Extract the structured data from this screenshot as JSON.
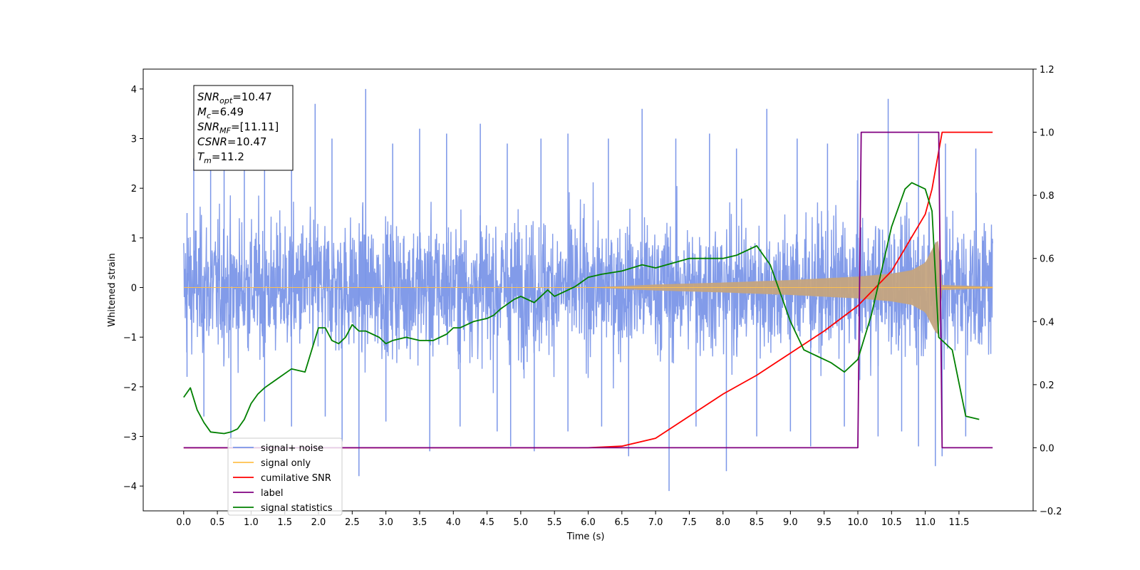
{
  "chart_data": {
    "type": "line",
    "xlabel": "Time (s)",
    "ylabel": "Whitened strain",
    "xlim": [
      -0.6,
      12.6
    ],
    "ylim": [
      -4.5,
      4.4
    ],
    "y2lim": [
      -0.2,
      1.2
    ],
    "xticks": [
      "0.0",
      "0.5",
      "1.0",
      "1.5",
      "2.0",
      "2.5",
      "3.0",
      "3.5",
      "4.0",
      "4.5",
      "5.0",
      "5.5",
      "6.0",
      "6.5",
      "7.0",
      "7.5",
      "8.0",
      "8.5",
      "9.0",
      "9.5",
      "10.0",
      "10.5",
      "11.0",
      "11.5"
    ],
    "yticks": [
      "4",
      "3",
      "2",
      "1",
      "0",
      "−1",
      "−2",
      "−3",
      "−4"
    ],
    "y2ticks": [
      "1.2",
      "1.0",
      "0.8",
      "0.6",
      "0.4",
      "0.2",
      "0.0",
      "−0.2"
    ],
    "grid": false,
    "legend_location": "lower-left",
    "annotation": {
      "lines": [
        {
          "var": "SNR",
          "sub": "opt",
          "value": "=10.47"
        },
        {
          "var": "M",
          "sub": "c",
          "value": "=6.49"
        },
        {
          "var": "SNR",
          "sub": "MF",
          "value": "=[11.11]"
        },
        {
          "var": "CSNR",
          "sub": "",
          "value": "=10.47"
        },
        {
          "var": "T",
          "sub": "m",
          "value": "=11.2"
        }
      ]
    },
    "series": [
      {
        "name": "signal+ noise",
        "color": "#7b96e8",
        "axis": "left",
        "style": "noise band ±1.5 typical, spikes to ±4",
        "spikes_high": [
          [
            0.05,
            1.5
          ],
          [
            0.15,
            2.6
          ],
          [
            0.4,
            2.9
          ],
          [
            0.6,
            3.1
          ],
          [
            0.9,
            3.0
          ],
          [
            1.2,
            2.7
          ],
          [
            1.6,
            3.2
          ],
          [
            1.95,
            3.7
          ],
          [
            2.2,
            3.0
          ],
          [
            2.7,
            4.0
          ],
          [
            3.1,
            2.9
          ],
          [
            3.5,
            3.2
          ],
          [
            3.9,
            3.1
          ],
          [
            4.4,
            3.3
          ],
          [
            4.8,
            2.9
          ],
          [
            5.3,
            3.0
          ],
          [
            5.7,
            3.1
          ],
          [
            6.3,
            3.0
          ],
          [
            6.8,
            3.6
          ],
          [
            7.3,
            3.0
          ],
          [
            7.8,
            3.1
          ],
          [
            8.2,
            2.8
          ],
          [
            8.65,
            3.6
          ],
          [
            9.1,
            3.0
          ],
          [
            9.55,
            2.9
          ],
          [
            10.0,
            3.1
          ],
          [
            10.45,
            3.8
          ],
          [
            10.9,
            3.1
          ],
          [
            11.3,
            2.9
          ],
          [
            11.75,
            2.8
          ]
        ],
        "spikes_low": [
          [
            0.05,
            -1.8
          ],
          [
            0.3,
            -2.6
          ],
          [
            0.7,
            -3.2
          ],
          [
            1.2,
            -2.7
          ],
          [
            1.6,
            -2.8
          ],
          [
            2.1,
            -2.6
          ],
          [
            2.35,
            -3.1
          ],
          [
            2.6,
            -3.8
          ],
          [
            3.0,
            -2.7
          ],
          [
            3.65,
            -3.3
          ],
          [
            4.1,
            -2.8
          ],
          [
            4.65,
            -2.9
          ],
          [
            4.85,
            -3.2
          ],
          [
            5.2,
            -3.3
          ],
          [
            5.7,
            -2.9
          ],
          [
            6.2,
            -2.8
          ],
          [
            6.6,
            -3.4
          ],
          [
            7.2,
            -4.1
          ],
          [
            7.6,
            -2.8
          ],
          [
            8.05,
            -3.7
          ],
          [
            8.5,
            -3.0
          ],
          [
            9.0,
            -2.9
          ],
          [
            9.3,
            -3.2
          ],
          [
            9.8,
            -2.8
          ],
          [
            10.3,
            -3.0
          ],
          [
            10.65,
            -2.9
          ],
          [
            10.9,
            -3.2
          ],
          [
            11.15,
            -3.6
          ],
          [
            11.25,
            -3.4
          ],
          [
            11.6,
            -3.0
          ]
        ]
      },
      {
        "name": "signal only",
        "color": "#ffc04d",
        "axis": "left",
        "envelope": [
          [
            0.0,
            0.0
          ],
          [
            6.0,
            0.0
          ],
          [
            7.0,
            0.06
          ],
          [
            8.0,
            0.1
          ],
          [
            9.0,
            0.15
          ],
          [
            10.0,
            0.22
          ],
          [
            10.5,
            0.28
          ],
          [
            10.8,
            0.35
          ],
          [
            11.0,
            0.5
          ],
          [
            11.15,
            0.9
          ],
          [
            11.2,
            0.95
          ],
          [
            11.25,
            0.05
          ],
          [
            12.0,
            0.02
          ]
        ]
      },
      {
        "name": "cumilative SNR",
        "color": "#ff0000",
        "axis": "right",
        "x": [
          0.0,
          6.0,
          6.5,
          7.0,
          7.5,
          8.0,
          8.5,
          9.0,
          9.5,
          10.0,
          10.5,
          11.0,
          11.1,
          11.2,
          11.25,
          12.0
        ],
        "y": [
          0.0,
          0.0,
          0.005,
          0.03,
          0.1,
          0.17,
          0.23,
          0.3,
          0.37,
          0.45,
          0.56,
          0.74,
          0.82,
          0.94,
          1.0,
          1.0
        ]
      },
      {
        "name": "label",
        "color": "#800080",
        "axis": "right",
        "x": [
          0.0,
          10.0,
          10.05,
          11.2,
          11.25,
          12.0
        ],
        "y": [
          0.0,
          0.0,
          1.0,
          1.0,
          0.0,
          0.0
        ]
      },
      {
        "name": "signal statistics",
        "color": "#008000",
        "axis": "right",
        "x": [
          0.0,
          0.1,
          0.2,
          0.3,
          0.4,
          0.6,
          0.7,
          0.8,
          0.9,
          1.0,
          1.1,
          1.2,
          1.4,
          1.6,
          1.8,
          2.0,
          2.1,
          2.2,
          2.3,
          2.4,
          2.5,
          2.6,
          2.7,
          2.8,
          2.9,
          3.0,
          3.1,
          3.3,
          3.5,
          3.7,
          3.9,
          4.0,
          4.1,
          4.3,
          4.5,
          4.6,
          4.7,
          4.9,
          5.0,
          5.2,
          5.4,
          5.5,
          5.8,
          6.0,
          6.2,
          6.5,
          6.8,
          7.0,
          7.5,
          8.0,
          8.2,
          8.5,
          8.7,
          9.0,
          9.2,
          9.4,
          9.6,
          9.8,
          10.0,
          10.2,
          10.5,
          10.7,
          10.8,
          11.0,
          11.1,
          11.2,
          11.4,
          11.6,
          11.8
        ],
        "y": [
          0.16,
          0.19,
          0.12,
          0.08,
          0.05,
          0.045,
          0.05,
          0.06,
          0.09,
          0.14,
          0.17,
          0.19,
          0.22,
          0.25,
          0.24,
          0.38,
          0.38,
          0.34,
          0.33,
          0.35,
          0.39,
          0.37,
          0.37,
          0.36,
          0.35,
          0.33,
          0.34,
          0.35,
          0.34,
          0.34,
          0.36,
          0.38,
          0.38,
          0.4,
          0.41,
          0.42,
          0.44,
          0.47,
          0.48,
          0.46,
          0.5,
          0.48,
          0.51,
          0.54,
          0.55,
          0.56,
          0.58,
          0.57,
          0.6,
          0.6,
          0.61,
          0.64,
          0.58,
          0.4,
          0.31,
          0.29,
          0.27,
          0.24,
          0.28,
          0.42,
          0.7,
          0.82,
          0.84,
          0.82,
          0.75,
          0.35,
          0.31,
          0.1,
          0.09
        ]
      }
    ]
  }
}
